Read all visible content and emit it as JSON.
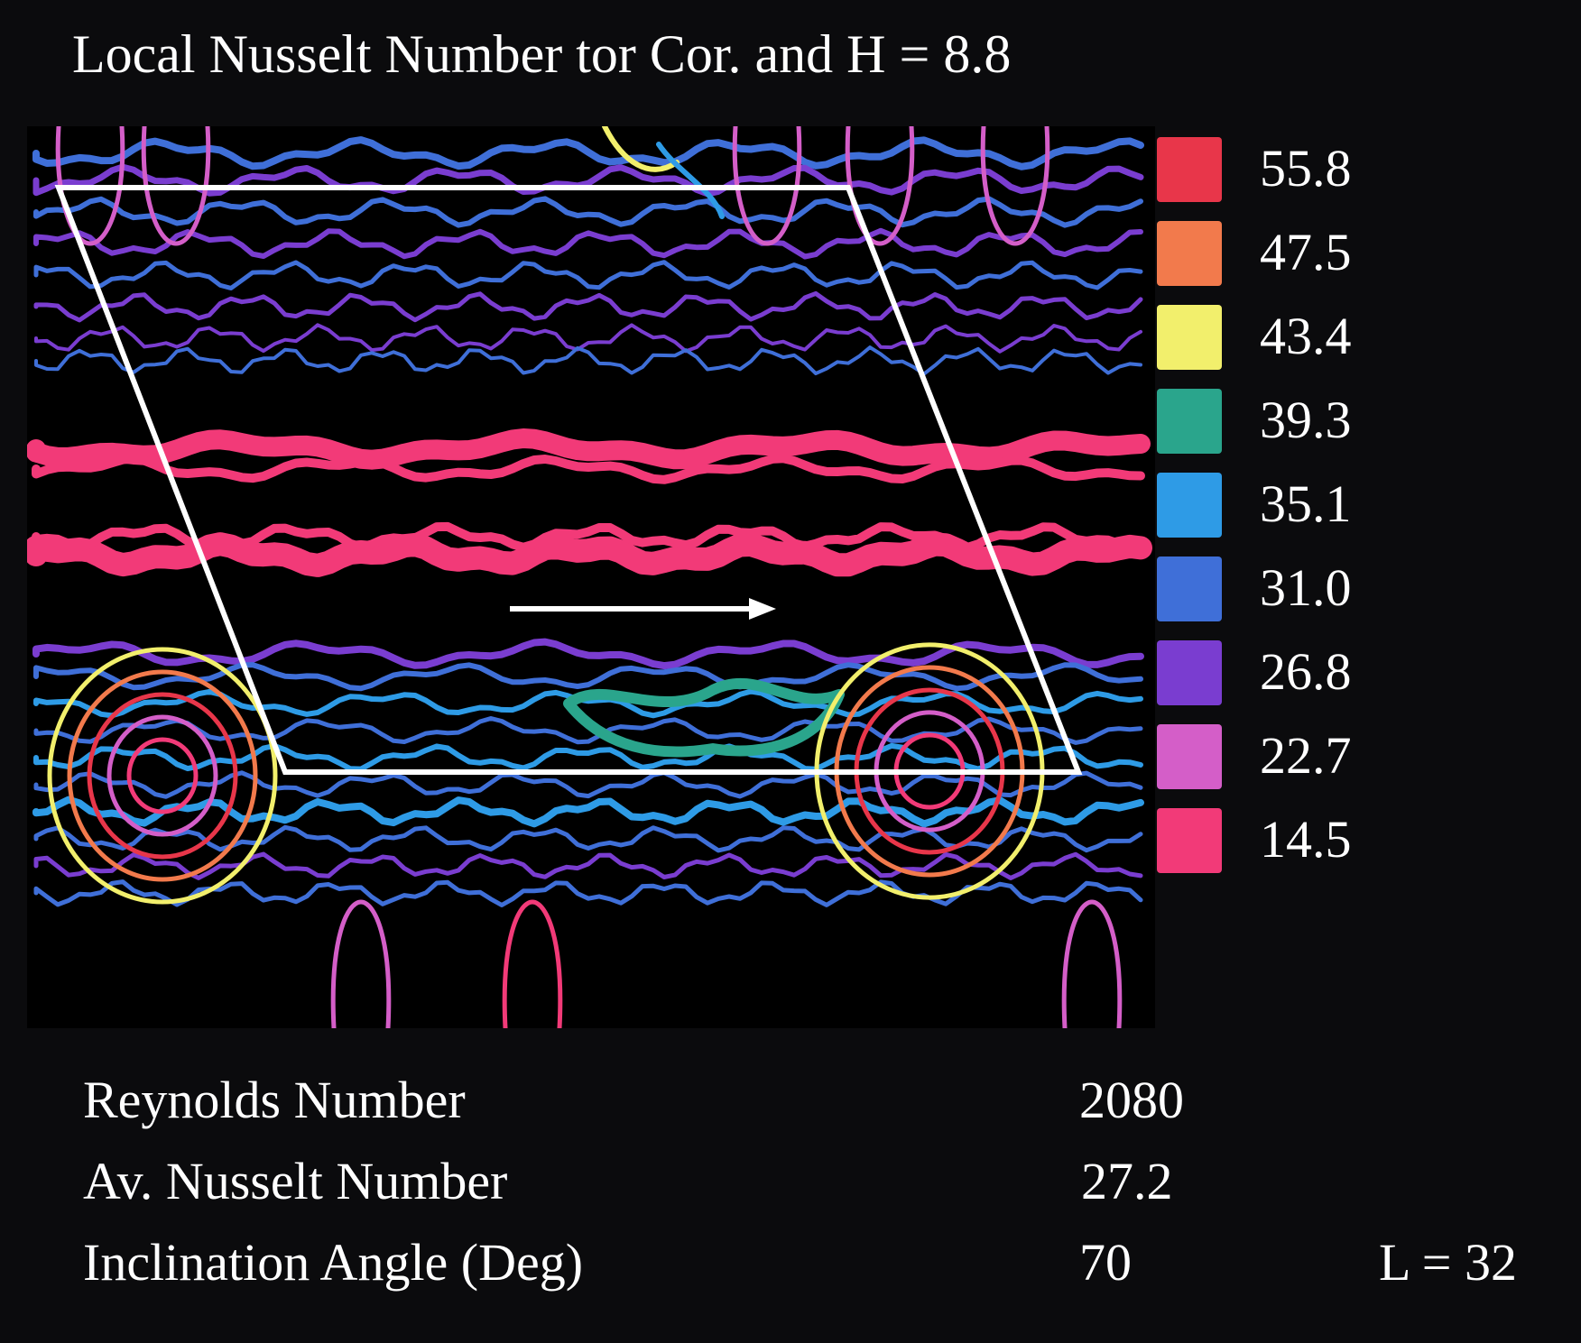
{
  "chart_data": {
    "type": "heatmap",
    "title": "Local Nusselt Number tor Cor. and H = 8.8",
    "xlabel": "",
    "ylabel": "",
    "legend_position": "right",
    "legend": [
      {
        "value": "55.8",
        "color": "#e8364a"
      },
      {
        "value": "47.5",
        "color": "#f27a4c"
      },
      {
        "value": "43.4",
        "color": "#f2ef6c"
      },
      {
        "value": "39.3",
        "color": "#2aa58c"
      },
      {
        "value": "35.1",
        "color": "#2e9be6"
      },
      {
        "value": "31.0",
        "color": "#3f6fd8"
      },
      {
        "value": "26.8",
        "color": "#7a3dd0"
      },
      {
        "value": "22.7",
        "color": "#d45ec8"
      },
      {
        "value": "14.5",
        "color": "#f23a78"
      }
    ],
    "annotations": {
      "outline": "parallelogram",
      "flow_arrow": "right"
    }
  },
  "stats": [
    {
      "label": "Reynolds Number",
      "value": "2080"
    },
    {
      "label": "Av. Nusselt Number",
      "value": "27.2"
    },
    {
      "label": "Inclination Angle (Deg)",
      "value": "70"
    }
  ],
  "corner_label": "L = 32"
}
